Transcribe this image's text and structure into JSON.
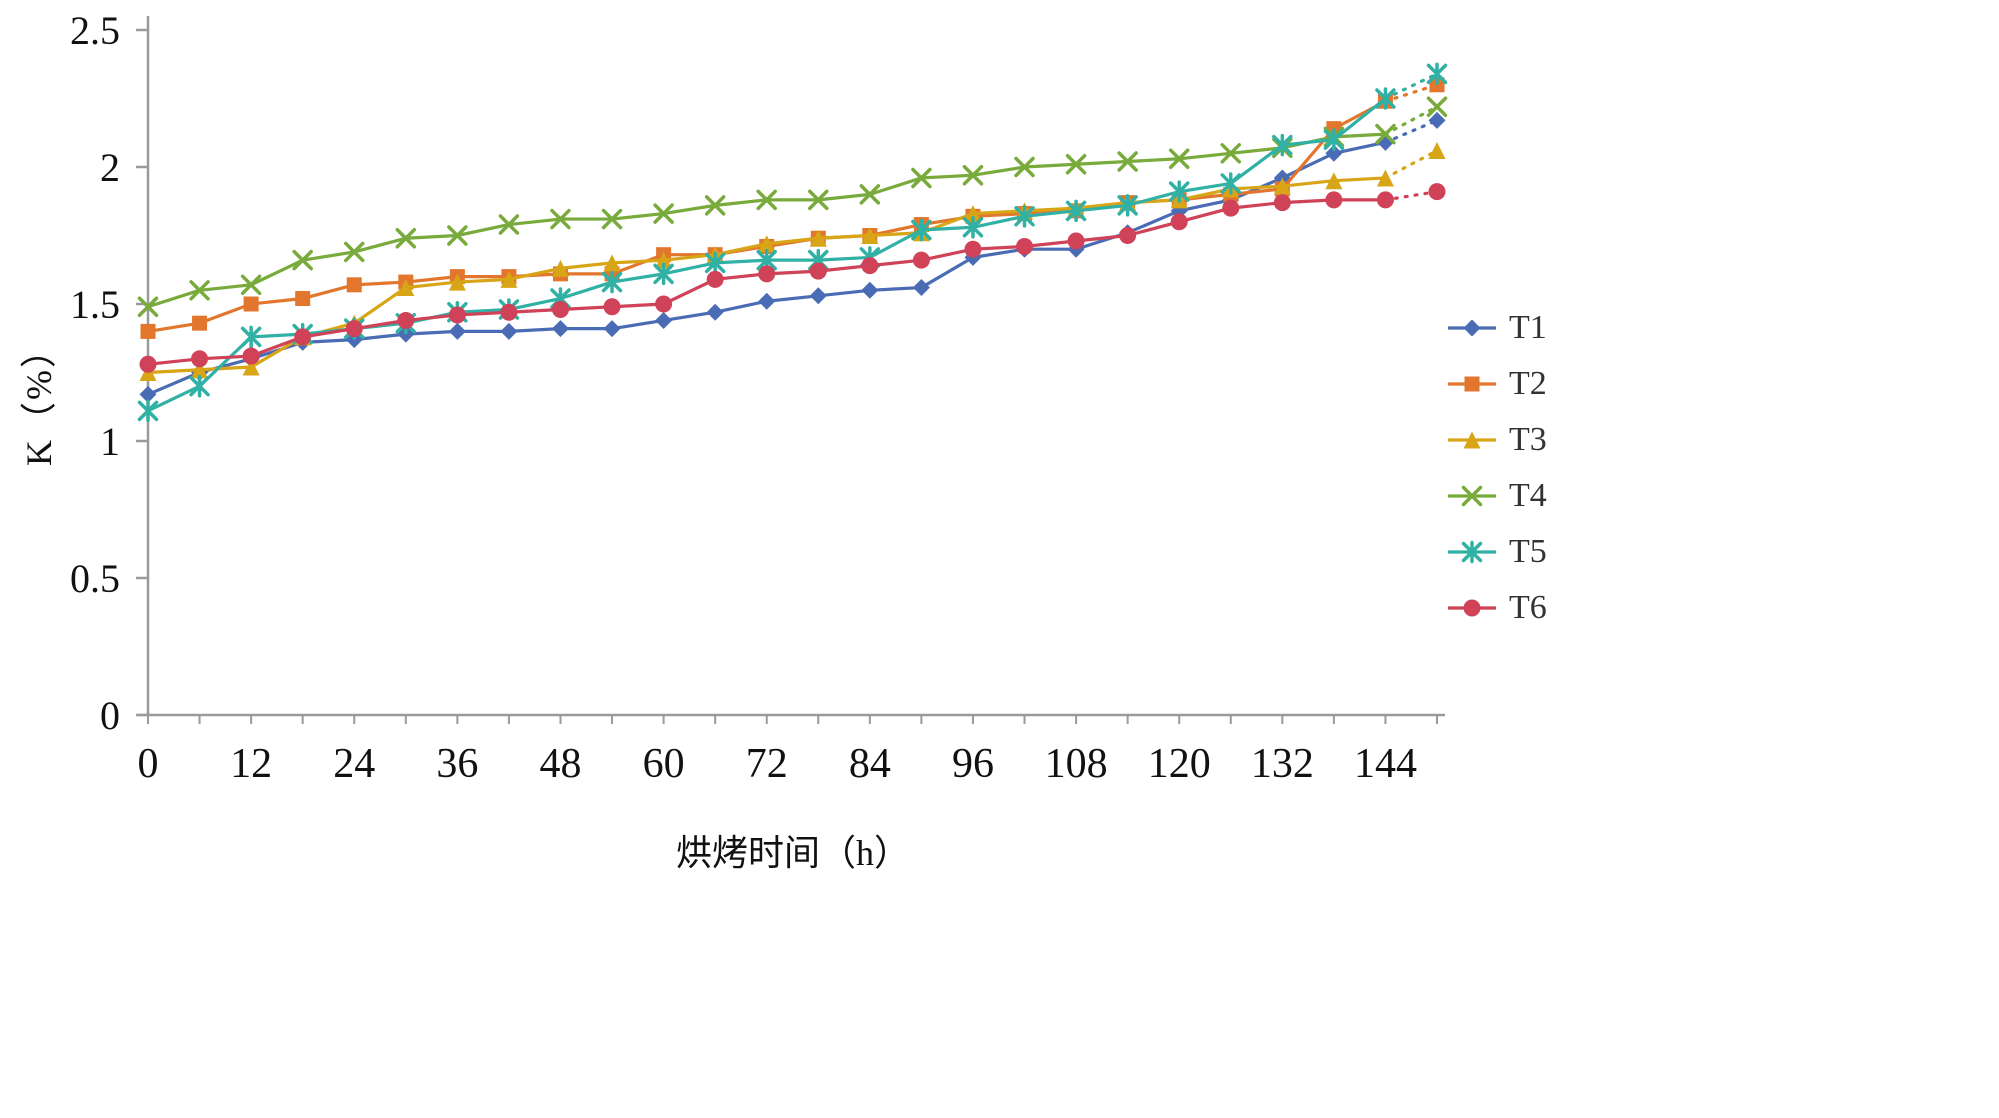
{
  "chart_data": {
    "type": "line",
    "title": "",
    "xlabel": "烘烤时间（h）",
    "ylabel": "K（%）",
    "xlim": [
      0,
      150
    ],
    "ylim": [
      0,
      2.5
    ],
    "xticks": [
      0,
      12,
      24,
      36,
      48,
      60,
      72,
      84,
      96,
      108,
      120,
      132,
      144
    ],
    "yticks": [
      0,
      0.5,
      1,
      1.5,
      2,
      2.5
    ],
    "grid": false,
    "legend_position": "right",
    "axis_color": "#9a9a9a",
    "dashed_tail_from_x": 144,
    "x": [
      0,
      6,
      12,
      18,
      24,
      30,
      36,
      42,
      48,
      54,
      60,
      66,
      72,
      78,
      84,
      90,
      96,
      102,
      108,
      114,
      120,
      126,
      132,
      138,
      144,
      150
    ],
    "series": [
      {
        "name": "T1",
        "color": "#4a6cb5",
        "marker": "diamond",
        "values": [
          1.17,
          1.25,
          1.3,
          1.36,
          1.37,
          1.39,
          1.4,
          1.4,
          1.41,
          1.41,
          1.44,
          1.47,
          1.51,
          1.53,
          1.55,
          1.56,
          1.67,
          1.7,
          1.7,
          1.76,
          1.84,
          1.88,
          1.96,
          2.05,
          2.09,
          2.17
        ]
      },
      {
        "name": "T2",
        "color": "#e2762d",
        "marker": "square",
        "values": [
          1.4,
          1.43,
          1.5,
          1.52,
          1.57,
          1.58,
          1.6,
          1.6,
          1.61,
          1.61,
          1.68,
          1.68,
          1.71,
          1.74,
          1.75,
          1.79,
          1.82,
          1.83,
          1.84,
          1.87,
          1.88,
          1.9,
          1.92,
          2.14,
          2.24,
          2.3
        ]
      },
      {
        "name": "T3",
        "color": "#d8a517",
        "marker": "triangle",
        "values": [
          1.25,
          1.26,
          1.27,
          1.38,
          1.43,
          1.56,
          1.58,
          1.59,
          1.63,
          1.65,
          1.66,
          1.68,
          1.72,
          1.74,
          1.75,
          1.76,
          1.83,
          1.84,
          1.85,
          1.87,
          1.88,
          1.92,
          1.93,
          1.95,
          1.96,
          2.06
        ]
      },
      {
        "name": "T4",
        "color": "#79aa3c",
        "marker": "x",
        "values": [
          1.49,
          1.55,
          1.57,
          1.66,
          1.69,
          1.74,
          1.75,
          1.79,
          1.81,
          1.81,
          1.83,
          1.86,
          1.88,
          1.88,
          1.9,
          1.96,
          1.97,
          2.0,
          2.01,
          2.02,
          2.03,
          2.05,
          2.07,
          2.11,
          2.12,
          2.22
        ]
      },
      {
        "name": "T5",
        "color": "#31b1a5",
        "marker": "star",
        "values": [
          1.11,
          1.2,
          1.38,
          1.39,
          1.41,
          1.43,
          1.47,
          1.48,
          1.52,
          1.58,
          1.61,
          1.65,
          1.66,
          1.66,
          1.67,
          1.77,
          1.78,
          1.82,
          1.84,
          1.86,
          1.91,
          1.94,
          2.08,
          2.1,
          2.25,
          2.34
        ]
      },
      {
        "name": "T6",
        "color": "#cf4257",
        "marker": "circle",
        "values": [
          1.28,
          1.3,
          1.31,
          1.38,
          1.41,
          1.44,
          1.46,
          1.47,
          1.48,
          1.49,
          1.5,
          1.59,
          1.61,
          1.62,
          1.64,
          1.66,
          1.7,
          1.71,
          1.73,
          1.75,
          1.8,
          1.85,
          1.87,
          1.88,
          1.88,
          1.91
        ]
      }
    ]
  }
}
